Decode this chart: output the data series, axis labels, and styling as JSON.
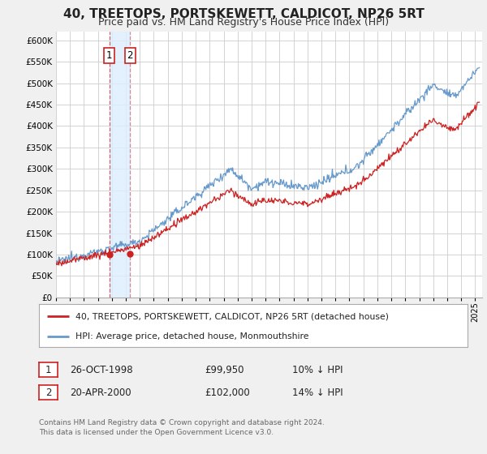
{
  "title": "40, TREETOPS, PORTSKEWETT, CALDICOT, NP26 5RT",
  "subtitle": "Price paid vs. HM Land Registry's House Price Index (HPI)",
  "ylim": [
    0,
    620000
  ],
  "yticks": [
    0,
    50000,
    100000,
    150000,
    200000,
    250000,
    300000,
    350000,
    400000,
    450000,
    500000,
    550000,
    600000
  ],
  "ytick_labels": [
    "£0",
    "£50K",
    "£100K",
    "£150K",
    "£200K",
    "£250K",
    "£300K",
    "£350K",
    "£400K",
    "£450K",
    "£500K",
    "£550K",
    "£600K"
  ],
  "xlim_start": 1995.0,
  "xlim_end": 2025.5,
  "sale1_date": 1998.82,
  "sale1_price": 99950,
  "sale1_label": "1",
  "sale2_date": 2000.3,
  "sale2_price": 102000,
  "sale2_label": "2",
  "legend_line1": "40, TREETOPS, PORTSKEWETT, CALDICOT, NP26 5RT (detached house)",
  "legend_line2": "HPI: Average price, detached house, Monmouthshire",
  "table_row1": [
    "1",
    "26-OCT-1998",
    "£99,950",
    "10% ↓ HPI"
  ],
  "table_row2": [
    "2",
    "20-APR-2000",
    "£102,000",
    "14% ↓ HPI"
  ],
  "footnote1": "Contains HM Land Registry data © Crown copyright and database right 2024.",
  "footnote2": "This data is licensed under the Open Government Licence v3.0.",
  "red_color": "#cc2222",
  "blue_color": "#6699cc",
  "background_color": "#f0f0f0",
  "plot_bg_color": "#ffffff",
  "grid_color": "#cccccc",
  "shade_color": "#ddeeff",
  "title_fontsize": 11,
  "subtitle_fontsize": 9
}
